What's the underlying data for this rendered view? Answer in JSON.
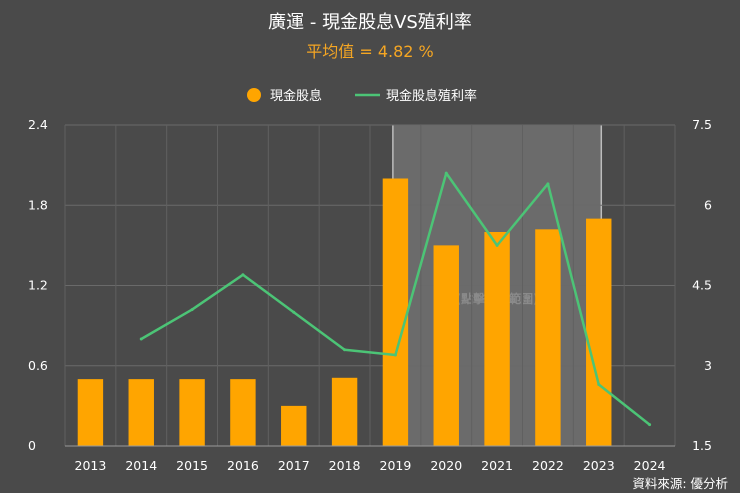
{
  "title": "廣運 - 現金股息VS殖利率",
  "subtitle": "平均值 = 4.82 %",
  "highlight_label": "(點擊查看範圍)",
  "source": "資料來源: 優分析",
  "colors": {
    "background": "#4a4a4a",
    "bar": "#ffa500",
    "line": "#4cc476",
    "subtitle": "#f5a623",
    "highlight": "#6b6b6b"
  },
  "chart_data": {
    "type": "bar",
    "categories": [
      "2013",
      "2014",
      "2015",
      "2016",
      "2017",
      "2018",
      "2019",
      "2020",
      "2021",
      "2022",
      "2023",
      "2024"
    ],
    "series": [
      {
        "name": "現金股息",
        "type": "bar",
        "axis": "left",
        "values": [
          0.5,
          0.5,
          0.5,
          0.5,
          0.3,
          0.51,
          2.0,
          1.5,
          1.6,
          1.62,
          1.7,
          null
        ]
      },
      {
        "name": "現金股息殖利率",
        "type": "line",
        "axis": "right",
        "values": [
          null,
          3.5,
          4.05,
          4.7,
          4.0,
          3.3,
          3.2,
          6.6,
          5.25,
          6.4,
          2.65,
          1.9
        ]
      }
    ],
    "y_left": {
      "ylim": [
        0,
        2.4
      ],
      "ticks": [
        "0",
        "0.6",
        "1.2",
        "1.8",
        "2.4"
      ]
    },
    "y_right": {
      "ylim": [
        1.5,
        7.5
      ],
      "ticks": [
        "1.5",
        "3",
        "4.5",
        "6",
        "7.5"
      ]
    },
    "highlight_range": [
      "2019",
      "2023"
    ],
    "legend_position": "top-center",
    "grid": true
  }
}
